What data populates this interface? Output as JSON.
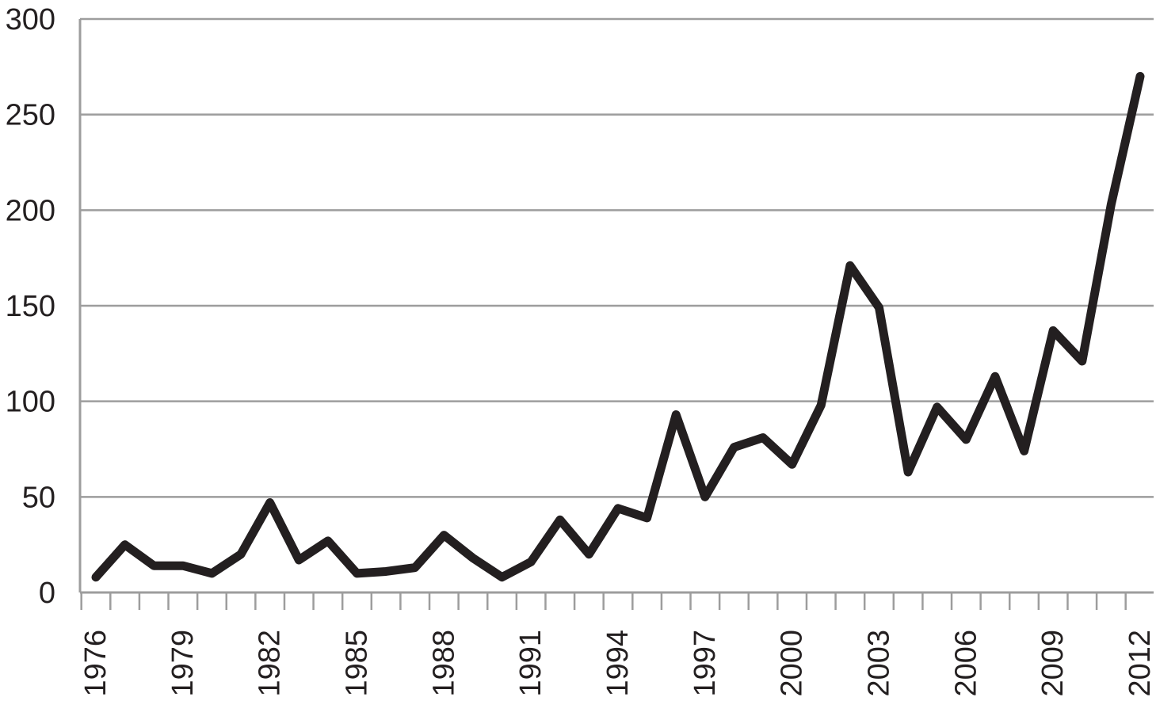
{
  "chart_data": {
    "type": "line",
    "title": "",
    "xlabel": "",
    "ylabel": "",
    "x": [
      1976,
      1977,
      1978,
      1979,
      1980,
      1981,
      1982,
      1983,
      1984,
      1985,
      1986,
      1987,
      1988,
      1989,
      1990,
      1991,
      1992,
      1993,
      1994,
      1995,
      1996,
      1997,
      1998,
      1999,
      2000,
      2001,
      2002,
      2003,
      2004,
      2005,
      2006,
      2007,
      2008,
      2009,
      2010,
      2011,
      2012
    ],
    "x_tick_labels": [
      "1976",
      "1979",
      "1982",
      "1985",
      "1988",
      "1991",
      "1994",
      "1997",
      "2000",
      "2003",
      "2006",
      "2009",
      "2012"
    ],
    "y_tick_labels": [
      "0",
      "50",
      "100",
      "150",
      "200",
      "250",
      "300"
    ],
    "ylim": [
      0,
      300
    ],
    "grid": true,
    "legend": "none",
    "series": [
      {
        "color": "#231f20",
        "values": [
          8,
          25,
          14,
          14,
          10,
          20,
          47,
          17,
          27,
          10,
          11,
          13,
          30,
          18,
          8,
          16,
          38,
          20,
          44,
          39,
          93,
          50,
          76,
          81,
          67,
          98,
          171,
          149,
          63,
          97,
          80,
          113,
          74,
          137,
          121,
          203,
          270
        ]
      }
    ]
  }
}
